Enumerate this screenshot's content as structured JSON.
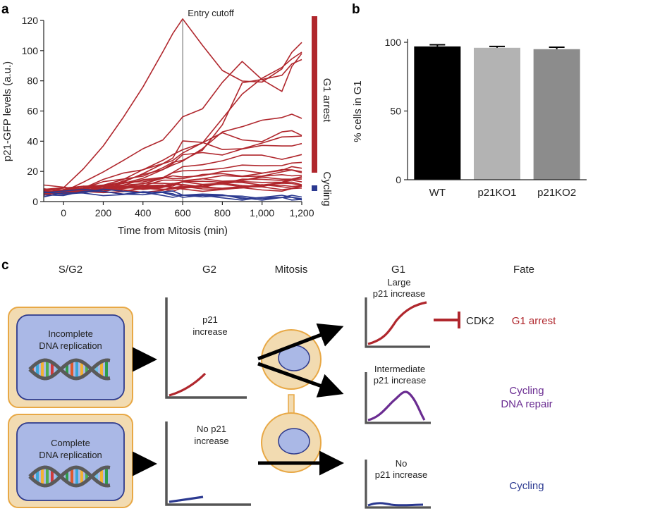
{
  "panels": {
    "a": "a",
    "b": "b",
    "c": "c"
  },
  "chart_data": [
    {
      "type": "line",
      "panel": "a",
      "title": "",
      "xlabel": "Time from Mitosis (min)",
      "ylabel": "p21-GFP levels (a.u.)",
      "xlim": [
        -100,
        1200
      ],
      "ylim": [
        0,
        120
      ],
      "x_ticks": [
        0,
        200,
        400,
        600,
        800,
        1000,
        1200
      ],
      "x_tick_labels": [
        "0",
        "200",
        "400",
        "600",
        "800",
        "1,000",
        "1,200"
      ],
      "y_ticks": [
        0,
        20,
        40,
        60,
        80,
        100,
        120
      ],
      "y_tick_labels": [
        "0",
        "20",
        "40",
        "60",
        "80",
        "100",
        "120"
      ],
      "annotation": "Entry cutoff",
      "cutoff_x": 600,
      "legend": [
        "G1 arrest",
        "Cycling"
      ],
      "colors": {
        "g1_arrest": "#b0272d",
        "cycling": "#2b3990",
        "cutoff": "#b3b3b3"
      },
      "x": [
        -100,
        0,
        100,
        200,
        300,
        400,
        500,
        550,
        600,
        700,
        800,
        900,
        1000,
        1100,
        1150,
        1200
      ],
      "series": [
        {
          "name": "G1 arrest",
          "values": [
            5,
            8,
            22,
            38,
            55,
            75,
            100,
            112,
            120,
            103,
            88,
            80,
            78,
            88,
            100,
            105
          ]
        },
        {
          "name": "G1 arrest",
          "values": [
            6,
            6,
            14,
            20,
            26,
            35,
            42,
            48,
            55,
            62,
            80,
            92,
            80,
            74,
            90,
            97
          ]
        },
        {
          "name": "G1 arrest",
          "values": [
            6,
            7,
            10,
            14,
            18,
            22,
            28,
            30,
            34,
            40,
            55,
            70,
            82,
            90,
            94,
            98
          ]
        },
        {
          "name": "G1 arrest",
          "values": [
            5,
            7,
            9,
            12,
            15,
            18,
            22,
            25,
            28,
            35,
            50,
            78,
            82,
            84,
            90,
            94
          ]
        },
        {
          "name": "G1 arrest",
          "values": [
            6,
            7,
            8,
            10,
            13,
            16,
            20,
            24,
            28,
            35,
            45,
            50,
            55,
            55,
            57,
            56
          ]
        },
        {
          "name": "G1 arrest",
          "values": [
            7,
            8,
            9,
            11,
            14,
            18,
            24,
            28,
            33,
            38,
            45,
            42,
            40,
            45,
            47,
            45
          ]
        },
        {
          "name": "G1 arrest",
          "values": [
            6,
            7,
            9,
            12,
            15,
            20,
            25,
            30,
            40,
            38,
            35,
            36,
            38,
            42,
            44,
            44
          ]
        },
        {
          "name": "G1 arrest",
          "values": [
            5,
            6,
            8,
            10,
            13,
            17,
            22,
            26,
            30,
            32,
            32,
            35,
            36,
            37,
            38,
            38
          ]
        },
        {
          "name": "G1 arrest",
          "values": [
            6,
            6,
            7,
            9,
            11,
            14,
            17,
            19,
            22,
            25,
            28,
            30,
            30,
            29,
            30,
            30
          ]
        },
        {
          "name": "G1 arrest",
          "values": [
            6,
            7,
            8,
            10,
            12,
            14,
            16,
            18,
            20,
            22,
            22,
            23,
            24,
            25,
            25,
            25
          ]
        },
        {
          "name": "G1 arrest",
          "values": [
            5,
            6,
            7,
            9,
            11,
            13,
            15,
            16,
            17,
            18,
            19,
            20,
            20,
            21,
            22,
            22
          ]
        },
        {
          "name": "G1 arrest",
          "values": [
            6,
            7,
            8,
            9,
            10,
            11,
            13,
            14,
            15,
            15,
            16,
            17,
            18,
            19,
            20,
            20
          ]
        },
        {
          "name": "G1 arrest",
          "values": [
            7,
            8,
            9,
            10,
            12,
            14,
            15,
            16,
            16,
            17,
            18,
            18,
            19,
            20,
            21,
            21
          ]
        },
        {
          "name": "G1 arrest",
          "values": [
            6,
            7,
            8,
            9,
            10,
            11,
            12,
            13,
            13,
            14,
            14,
            15,
            16,
            17,
            18,
            18
          ]
        },
        {
          "name": "G1 arrest",
          "values": [
            5,
            6,
            7,
            8,
            9,
            10,
            11,
            11,
            12,
            13,
            14,
            14,
            15,
            15,
            16,
            16
          ]
        },
        {
          "name": "G1 arrest",
          "values": [
            7,
            7,
            8,
            9,
            9,
            10,
            11,
            11,
            12,
            12,
            13,
            14,
            14,
            15,
            15,
            15
          ]
        },
        {
          "name": "G1 arrest",
          "values": [
            6,
            6,
            7,
            8,
            9,
            9,
            10,
            10,
            11,
            11,
            12,
            12,
            13,
            14,
            14,
            14
          ]
        },
        {
          "name": "G1 arrest",
          "values": [
            8,
            8,
            9,
            9,
            10,
            10,
            10,
            11,
            11,
            11,
            12,
            12,
            12,
            13,
            13,
            13
          ]
        },
        {
          "name": "G1 arrest",
          "values": [
            7,
            7,
            7,
            8,
            8,
            9,
            9,
            9,
            10,
            10,
            11,
            11,
            11,
            12,
            12,
            12
          ]
        },
        {
          "name": "G1 arrest",
          "values": [
            9,
            9,
            9,
            9,
            10,
            10,
            10,
            10,
            10,
            10,
            11,
            11,
            11,
            11,
            12,
            12
          ]
        },
        {
          "name": "G1 arrest",
          "values": [
            5,
            6,
            6,
            7,
            7,
            8,
            8,
            8,
            9,
            9,
            9,
            10,
            10,
            10,
            11,
            11
          ]
        },
        {
          "name": "G1 arrest",
          "values": [
            8,
            8,
            8,
            8,
            8,
            9,
            9,
            9,
            9,
            9,
            10,
            10,
            10,
            10,
            10,
            10
          ]
        },
        {
          "name": "G1 arrest",
          "values": [
            10,
            9,
            9,
            9,
            9,
            9,
            9,
            9,
            9,
            9,
            9,
            9,
            9,
            9,
            9,
            9
          ]
        },
        {
          "name": "G1 arrest",
          "values": [
            6,
            6,
            7,
            7,
            7,
            7,
            8,
            8,
            8,
            8,
            8,
            8,
            8,
            8,
            8,
            8
          ]
        },
        {
          "name": "Cycling",
          "values": [
            6,
            6,
            6,
            7,
            7,
            7,
            6,
            6,
            5,
            4,
            3,
            3,
            3,
            3,
            3,
            3
          ]
        },
        {
          "name": "Cycling",
          "values": [
            5,
            5,
            6,
            6,
            6,
            5,
            5,
            5,
            4,
            4,
            3,
            3,
            2,
            2,
            2,
            2
          ]
        },
        {
          "name": "Cycling",
          "values": [
            7,
            7,
            7,
            7,
            6,
            6,
            5,
            5,
            5,
            4,
            4,
            3,
            3,
            3,
            3,
            3
          ]
        },
        {
          "name": "Cycling",
          "values": [
            4,
            5,
            5,
            5,
            5,
            5,
            4,
            4,
            4,
            3,
            3,
            2,
            2,
            2,
            2,
            2
          ]
        }
      ]
    },
    {
      "type": "bar",
      "panel": "b",
      "title": "",
      "xlabel": "",
      "ylabel": "% cells in G1",
      "ylim": [
        0,
        100
      ],
      "y_ticks": [
        0,
        50,
        100
      ],
      "y_tick_labels": [
        "0",
        "50",
        "100"
      ],
      "categories": [
        "WT",
        "p21KO1",
        "p21KO2"
      ],
      "values": [
        97,
        96,
        95
      ],
      "errors": [
        1.2,
        1.0,
        1.4
      ],
      "colors": [
        "#000000",
        "#b3b3b3",
        "#8c8c8c"
      ]
    }
  ],
  "diagram": {
    "stages": [
      "S/G2",
      "G2",
      "Mitosis",
      "G1",
      "Fate"
    ],
    "cells": {
      "incomplete": "Incomplete\nDNA replication",
      "complete": "Complete\nDNA replication"
    },
    "g2_notes": {
      "increase": "p21\nincrease",
      "no_increase": "No p21\nincrease"
    },
    "g1_notes": {
      "large": "Large\np21 increase",
      "intermediate": "Intermediate\np21 increase",
      "none": "No\np21 increase"
    },
    "inhibitor_target": "CDK2",
    "fates": {
      "arrest": "G1 arrest",
      "repair": "Cycling\nDNA repair",
      "cycling": "Cycling"
    },
    "colors": {
      "cell_outer": "#f2dbb1",
      "cell_outer_stroke": "#e8a845",
      "nucleus": "#aab8e6",
      "nucleus_stroke": "#2e3a8c",
      "red": "#b0272d",
      "purple": "#6a2c91",
      "blue": "#2b3990",
      "axis": "#555555"
    }
  }
}
